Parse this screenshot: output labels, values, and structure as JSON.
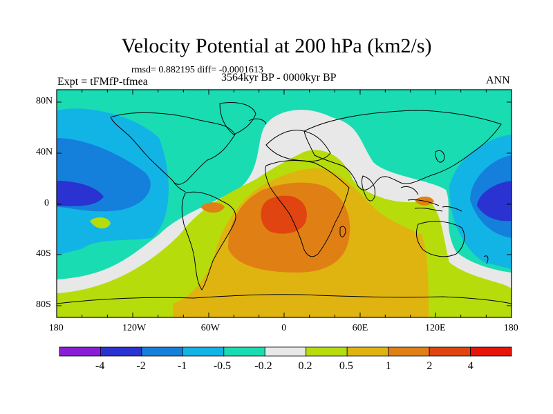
{
  "title": "Velocity Potential at 200 hPa (km2/s)",
  "stats": "rmsd= 0.882195 diff= -0.0001613",
  "experiment": "Expt = tFMfP-tfmea",
  "period": "3564kyr BP - 0000kyr BP",
  "season": "ANN",
  "lat_labels": [
    "80N",
    "40N",
    "0",
    "40S",
    "80S"
  ],
  "lon_labels": [
    "180",
    "120W",
    "60W",
    "0",
    "60E",
    "120E",
    "180"
  ],
  "colorbar": {
    "labels": [
      "-4",
      "-2",
      "-1",
      "-0.5",
      "-0.2",
      "0.2",
      "0.5",
      "1",
      "2",
      "4"
    ],
    "colors": [
      "#8a1ed8",
      "#2a32d2",
      "#1480dc",
      "#12b4e6",
      "#19dcb2",
      "#e8e8e8",
      "#b7dc0c",
      "#e0b410",
      "#e08014",
      "#e04410",
      "#e81408"
    ]
  },
  "palette": {
    "land_line": "#000000",
    "teal": "#19dcb2",
    "cyan": "#12b4e6",
    "blue": "#1480dc",
    "deep_blue": "#2a32d2",
    "gray": "#e8e8e8",
    "lime": "#b7dc0c",
    "gold": "#e0b410",
    "orange": "#e08014",
    "red_orange": "#e04410"
  }
}
